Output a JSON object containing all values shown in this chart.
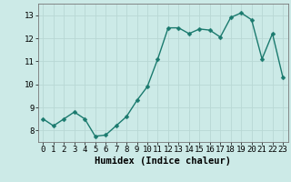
{
  "x": [
    0,
    1,
    2,
    3,
    4,
    5,
    6,
    7,
    8,
    9,
    10,
    11,
    12,
    13,
    14,
    15,
    16,
    17,
    18,
    19,
    20,
    21,
    22,
    23
  ],
  "y": [
    8.5,
    8.2,
    8.5,
    8.8,
    8.5,
    7.75,
    7.8,
    8.2,
    8.6,
    9.3,
    9.9,
    11.1,
    12.45,
    12.45,
    12.2,
    12.4,
    12.35,
    12.05,
    12.9,
    13.1,
    12.8,
    11.1,
    12.2,
    10.3
  ],
  "line_color": "#1a7a6e",
  "marker_color": "#1a7a6e",
  "bg_color": "#cceae7",
  "grid_color": "#b8d8d4",
  "xlabel": "Humidex (Indice chaleur)",
  "xlim": [
    -0.5,
    23.5
  ],
  "ylim": [
    7.5,
    13.5
  ],
  "yticks": [
    8,
    9,
    10,
    11,
    12,
    13
  ],
  "xticks": [
    0,
    1,
    2,
    3,
    4,
    5,
    6,
    7,
    8,
    9,
    10,
    11,
    12,
    13,
    14,
    15,
    16,
    17,
    18,
    19,
    20,
    21,
    22,
    23
  ],
  "tick_fontsize": 6.5,
  "xlabel_fontsize": 7.5,
  "line_width": 1.0,
  "marker_size": 2.5
}
